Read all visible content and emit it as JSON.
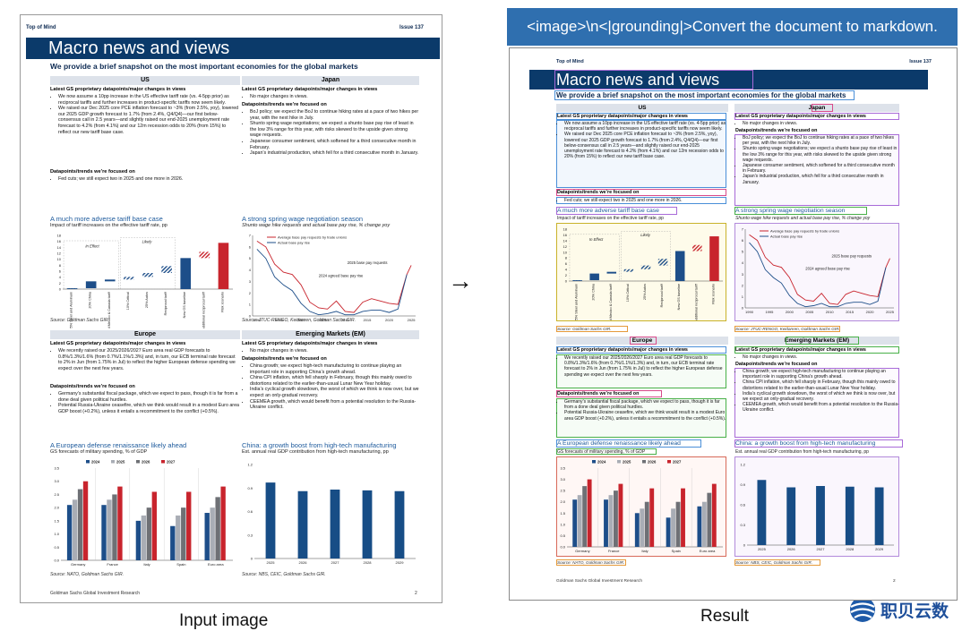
{
  "labels": {
    "input": "Input image",
    "result": "Result",
    "arrow": "→",
    "instruction": "<image>\\n<|grounding|>Convert the document to markdown.",
    "logo": "职贝云数"
  },
  "doc": {
    "top_left": "Top of Mind",
    "issue": "Issue 137",
    "title": "Macro news and views",
    "subtitle": "We provide a brief snapshot on the most important economies for the global markets",
    "footer": "Goldman Sachs Global Investment Research",
    "page": "2",
    "us": {
      "region": "US",
      "h_latest": "Latest GS proprietary datapoints/major changes in views",
      "latest": [
        "We now assume a 10pp increase in the US effective tariff rate (vs. 4-5pp prior) as reciprocal tariffs and further increases in product-specific tariffs now seem likely.",
        "We raised our Dec 2025 core PCE inflation forecast to ~3% (from 2.5%, yoy), lowered our 2025 GDP growth forecast to 1.7% (from 2.4%, Q4/Q4)—our first below-consensus call in 2.5 years—and slightly raised our end-2025 unemployment rate forecast to 4.2% (from 4.1%) and our 12m recession odds to 20% (from 15%) to reflect our new tariff base case."
      ],
      "h_trends": "Datapoints/trends we’re focused on",
      "trends": [
        "Fed cuts; we still expect two in 2025 and one more in 2026."
      ]
    },
    "japan": {
      "region": "Japan",
      "h_latest": "Latest GS proprietary datapoints/major changes in views",
      "latest": [
        "No major changes in views."
      ],
      "h_trends": "Datapoints/trends we’re focused on",
      "trends": [
        "BoJ policy; we expect the BoJ to continue hiking rates at a pace of two hikes per year, with the next hike in July.",
        "Shunto spring wage negotiations; we expect a shunto base pay rise of least in the low 3% range for this year, with risks skewed to the upside given strong wage requests.",
        "Japanese consumer sentiment, which softened for a third consecutive month in February.",
        "Japan’s industrial production, which fell for a third consecutive month in January."
      ]
    },
    "europe": {
      "region": "Europe",
      "h_latest": "Latest GS proprietary datapoints/major changes in views",
      "latest": [
        "We recently raised our 2025/2026/2027 Euro area real GDP forecasts to 0.8%/1.3%/1.6% (from 0.7%/1.1%/1.3%) and, in turn, our ECB terminal rate forecast to 2% in Jun (from 1.75% in Jul) to reflect the higher European defense spending we expect over the next few years."
      ],
      "h_trends": "Datapoints/trends we’re focused on",
      "trends": [
        "Germany’s substantial fiscal package, which we expect to pass, though it is far from a done deal given political hurdles.",
        "Potential Russia-Ukraine ceasefire, which we think would result in a modest Euro area GDP boost (+0.2%), unless it entails a recommitment to the conflict (+0.5%)."
      ]
    },
    "em": {
      "region": "Emerging Markets (EM)",
      "h_latest": "Latest GS proprietary datapoints/major changes in views",
      "latest": [
        "No major changes in views."
      ],
      "h_trends": "Datapoints/trends we’re focused on",
      "trends": [
        "China growth; we expect high-tech manufacturing to continue playing an important role in supporting China’s growth ahead.",
        "China CPI inflation, which fell sharply in February, though this mainly owed to distortions related to the earlier-than-usual Lunar New Year holiday.",
        "India’s cyclical growth slowdown, the worst of which we think is now over, but we expect an only-gradual recovery.",
        "CEEMEA growth, which would benefit from a potential resolution to the Russia-Ukraine conflict."
      ]
    },
    "charts": {
      "tariff": {
        "title": "A much more adverse tariff base case",
        "subtitle": "Impact of tariff increases on the effective tariff rate, pp",
        "source": "Source: Goldman Sachs GIR.",
        "in_effect": "In Effect",
        "likely": "Likely"
      },
      "wage": {
        "title": "A strong spring wage negotiation season",
        "subtitle": "Shunto wage hike requests and actual base pay rise, % change yoy",
        "source": "Source: JTUC-RENGO, Keidanren, Goldman Sachs GIR.",
        "annot1": "2025 base pay requests",
        "annot2": "2024 agreed base pay rise"
      },
      "defense": {
        "title": "A European defense renaissance likely ahead",
        "subtitle": "GS forecasts of military spending, % of GDP",
        "source": "Source: NATO, Goldman Sachs GIR."
      },
      "china": {
        "title": "China: a growth boost from high-tech manufacturing",
        "subtitle": "Est. annual real GDP contribution from high-tech manufacturing, pp",
        "source": "Source: NBS, CEIC, Goldman Sachs GIR."
      }
    }
  },
  "colors": {
    "navy": "#0b3a6a",
    "dark_blue": "#1d4e89",
    "light_gray": "#a9adb5",
    "red": "#c8242d",
    "accent_blue": "#1d5a9c"
  },
  "chart_data": [
    {
      "type": "bar",
      "title": "A much more adverse tariff base case",
      "subtitle": "Impact of tariff increases on the effective tariff rate, pp",
      "categories": [
        "25% Steel and Aluminum",
        "20% China",
        "Limited Mexico & Canada tariff",
        "10% Critical",
        "25% Autos",
        "Reciprocal tariff",
        "New GS baseline",
        "Additional reciprocal tariff",
        "Risk scenario"
      ],
      "values": [
        0.3,
        2.6,
        3.2,
        4.1,
        5.4,
        7.7,
        10.4,
        12.5,
        15.5
      ],
      "bases": [
        0,
        0.3,
        2.6,
        3.2,
        4.1,
        5.4,
        0,
        10.4,
        0
      ],
      "groups": [
        "In Effect",
        "In Effect",
        "In Effect",
        "Likely",
        "Likely",
        "Likely",
        "baseline",
        "additional",
        "risk"
      ],
      "ylim": [
        0,
        18
      ],
      "yticks": [
        0,
        2,
        4,
        6,
        8,
        10,
        12,
        14,
        16,
        18
      ]
    },
    {
      "type": "line",
      "title": "A strong spring wage negotiation season",
      "series": [
        {
          "name": "Average base pay requests by trade unions",
          "color": "#c8242d",
          "x": [
            1990,
            1992,
            1994,
            1996,
            1998,
            2000,
            2002,
            2004,
            2006,
            2008,
            2010,
            2012,
            2014,
            2016,
            2018,
            2020,
            2022,
            2024,
            2025
          ],
          "y": [
            6.5,
            6.0,
            4.5,
            3.8,
            3.6,
            2.7,
            1.2,
            0.7,
            0.6,
            1.3,
            0.4,
            0.3,
            1.2,
            1.5,
            1.3,
            1.1,
            1.0,
            3.6,
            4.4
          ]
        },
        {
          "name": "Actual base pay rise",
          "color": "#1d4e89",
          "x": [
            1990,
            1992,
            1994,
            1996,
            1998,
            2000,
            2002,
            2004,
            2006,
            2008,
            2010,
            2012,
            2014,
            2016,
            2018,
            2020,
            2022,
            2024
          ],
          "y": [
            5.8,
            5.0,
            3.4,
            2.7,
            2.2,
            1.1,
            0.4,
            0.1,
            0.2,
            0.4,
            0.1,
            0.1,
            0.4,
            0.5,
            0.5,
            0.3,
            0.6,
            3.6
          ]
        }
      ],
      "ylim": [
        0,
        7
      ],
      "yticks": [
        0,
        1,
        2,
        3,
        4,
        5,
        6,
        7
      ],
      "xticks": [
        1990,
        1995,
        2000,
        2005,
        2010,
        2015,
        2020,
        2025
      ]
    },
    {
      "type": "bar",
      "title": "A European defense renaissance likely ahead",
      "categories": [
        "Germany",
        "France",
        "Italy",
        "Spain",
        "Euro area"
      ],
      "series": [
        {
          "name": "2024",
          "color": "#1d4e89",
          "values": [
            2.1,
            2.1,
            1.5,
            1.3,
            1.8
          ]
        },
        {
          "name": "2025",
          "color": "#a9adb5",
          "values": [
            2.3,
            2.3,
            1.7,
            1.7,
            2.0
          ]
        },
        {
          "name": "2026",
          "color": "#6e7075",
          "values": [
            2.7,
            2.5,
            2.0,
            2.0,
            2.4
          ]
        },
        {
          "name": "2027",
          "color": "#c8242d",
          "values": [
            3.0,
            2.8,
            2.6,
            2.6,
            2.8
          ]
        }
      ],
      "ylim": [
        0,
        3.5
      ],
      "yticks": [
        0.0,
        0.5,
        1.0,
        1.5,
        2.0,
        2.5,
        3.0,
        3.5
      ]
    },
    {
      "type": "bar",
      "title": "China: a growth boost from high-tech manufacturing",
      "categories": [
        "2025",
        "2026",
        "2027",
        "2028",
        "2029"
      ],
      "values": [
        0.97,
        0.86,
        0.88,
        0.87,
        0.86
      ],
      "ylim": [
        0,
        1.2
      ],
      "yticks": [
        0,
        0.3,
        0.6,
        0.9,
        1.2
      ]
    }
  ]
}
